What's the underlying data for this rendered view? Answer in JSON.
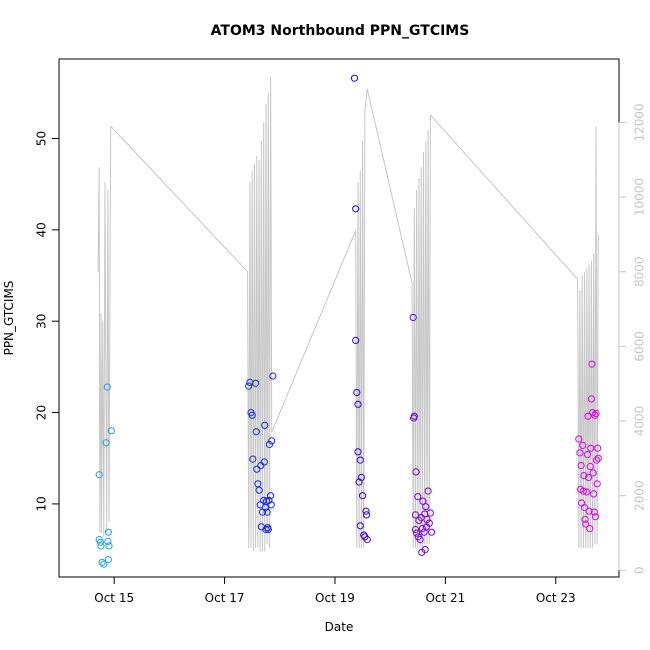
{
  "chart_data": {
    "type": "scatter",
    "title": "ATOM3 Northbound PPN_GTCIMS",
    "xlabel": "Date",
    "ylabel": "PPN_GTCIMS",
    "x_ticks": [
      "Oct 15",
      "Oct 17",
      "Oct 19",
      "Oct 21",
      "Oct 23"
    ],
    "y_ticks": [
      10,
      20,
      30,
      40,
      50
    ],
    "y2_ticks": [
      0,
      2000,
      4000,
      6000,
      8000,
      10000,
      12000
    ],
    "xlim": [
      "Oct 14 00:00",
      "Oct 24 03:30"
    ],
    "ylim": [
      2,
      58.7
    ],
    "y2lim": [
      -180,
      13700
    ],
    "grid": false,
    "colors": {
      "line": "#c6c6c6",
      "right_axis": "#c6c6c6",
      "points_gradient": [
        "#29a3f0",
        "#0a3cf0",
        "#2a00d6",
        "#ad00e6",
        "#e000f0"
      ]
    },
    "series": [
      {
        "type": "scatter",
        "axis": "left",
        "points": [
          [
            "Oct 14 17:30",
            13.2
          ],
          [
            "Oct 14 17:30",
            6.1
          ],
          [
            "Oct 14 18:00",
            5.8
          ],
          [
            "Oct 14 18:15",
            5.4
          ],
          [
            "Oct 14 18:45",
            3.6
          ],
          [
            "Oct 14 19:30",
            3.4
          ],
          [
            "Oct 14 20:30",
            16.7
          ],
          [
            "Oct 14 21:00",
            22.8
          ],
          [
            "Oct 14 21:15",
            5.9
          ],
          [
            "Oct 14 21:30",
            3.9
          ],
          [
            "Oct 14 21:30",
            6.9
          ],
          [
            "Oct 14 21:45",
            5.4
          ],
          [
            "Oct 14 22:45",
            18.0
          ],
          [
            "Oct 17 10:30",
            22.9
          ],
          [
            "Oct 17 11:00",
            23.3
          ],
          [
            "Oct 17 11:30",
            20.0
          ],
          [
            "Oct 17 12:00",
            19.7
          ],
          [
            "Oct 17 12:15",
            14.9
          ],
          [
            "Oct 17 13:30",
            23.2
          ],
          [
            "Oct 17 13:45",
            17.9
          ],
          [
            "Oct 17 14:00",
            13.8
          ],
          [
            "Oct 17 14:30",
            12.2
          ],
          [
            "Oct 17 15:00",
            11.5
          ],
          [
            "Oct 17 15:30",
            9.9
          ],
          [
            "Oct 17 15:45",
            14.2
          ],
          [
            "Oct 17 16:00",
            7.5
          ],
          [
            "Oct 17 16:30",
            9.1
          ],
          [
            "Oct 17 17:00",
            10.4
          ],
          [
            "Oct 17 17:15",
            14.6
          ],
          [
            "Oct 17 17:30",
            18.6
          ],
          [
            "Oct 17 17:45",
            9.6
          ],
          [
            "Oct 17 18:00",
            7.2
          ],
          [
            "Oct 17 18:15",
            10.3
          ],
          [
            "Oct 17 18:30",
            9.1
          ],
          [
            "Oct 17 18:45",
            7.4
          ],
          [
            "Oct 17 19:00",
            7.2
          ],
          [
            "Oct 17 19:15",
            10.4
          ],
          [
            "Oct 17 19:30",
            16.5
          ],
          [
            "Oct 17 20:00",
            10.9
          ],
          [
            "Oct 17 20:15",
            9.9
          ],
          [
            "Oct 17 20:30",
            16.9
          ],
          [
            "Oct 17 21:00",
            24.0
          ],
          [
            "Oct 19 08:30",
            56.6
          ],
          [
            "Oct 19 09:00",
            42.3
          ],
          [
            "Oct 19 09:00",
            27.9
          ],
          [
            "Oct 19 09:30",
            22.2
          ],
          [
            "Oct 19 10:00",
            20.9
          ],
          [
            "Oct 19 10:00",
            15.7
          ],
          [
            "Oct 19 10:30",
            12.4
          ],
          [
            "Oct 19 11:00",
            14.8
          ],
          [
            "Oct 19 11:00",
            7.6
          ],
          [
            "Oct 19 11:30",
            12.9
          ],
          [
            "Oct 19 12:00",
            10.9
          ],
          [
            "Oct 19 12:30",
            6.6
          ],
          [
            "Oct 19 13:00",
            6.4
          ],
          [
            "Oct 19 13:30",
            9.2
          ],
          [
            "Oct 19 13:45",
            8.8
          ],
          [
            "Oct 19 14:00",
            6.1
          ],
          [
            "Oct 20 10:00",
            30.4
          ],
          [
            "Oct 20 10:15",
            19.4
          ],
          [
            "Oct 20 10:30",
            19.6
          ],
          [
            "Oct 20 11:15",
            13.5
          ],
          [
            "Oct 20 11:00",
            8.8
          ],
          [
            "Oct 20 11:00",
            7.2
          ],
          [
            "Oct 20 11:30",
            6.8
          ],
          [
            "Oct 20 12:00",
            10.8
          ],
          [
            "Oct 20 12:15",
            6.4
          ],
          [
            "Oct 20 12:30",
            8.2
          ],
          [
            "Oct 20 13:00",
            6.1
          ],
          [
            "Oct 20 13:30",
            8.5
          ],
          [
            "Oct 20 13:45",
            4.7
          ],
          [
            "Oct 20 14:00",
            7.3
          ],
          [
            "Oct 20 14:15",
            10.3
          ],
          [
            "Oct 20 14:45",
            6.9
          ],
          [
            "Oct 20 15:00",
            8.9
          ],
          [
            "Oct 20 15:15",
            5.0
          ],
          [
            "Oct 20 15:30",
            9.7
          ],
          [
            "Oct 20 15:45",
            7.5
          ],
          [
            "Oct 20 16:00",
            8.3
          ],
          [
            "Oct 20 16:30",
            11.4
          ],
          [
            "Oct 20 17:00",
            7.9
          ],
          [
            "Oct 20 17:30",
            9.0
          ],
          [
            "Oct 20 18:00",
            6.9
          ],
          [
            "Oct 23 10:00",
            17.1
          ],
          [
            "Oct 23 10:30",
            15.6
          ],
          [
            "Oct 23 10:45",
            11.6
          ],
          [
            "Oct 23 11:00",
            14.2
          ],
          [
            "Oct 23 11:15",
            10.1
          ],
          [
            "Oct 23 11:45",
            16.4
          ],
          [
            "Oct 23 12:00",
            11.4
          ],
          [
            "Oct 23 12:15",
            13.1
          ],
          [
            "Oct 23 12:30",
            9.6
          ],
          [
            "Oct 23 12:45",
            8.3
          ],
          [
            "Oct 23 13:00",
            7.8
          ],
          [
            "Oct 23 13:30",
            11.3
          ],
          [
            "Oct 23 13:45",
            15.4
          ],
          [
            "Oct 23 14:00",
            19.6
          ],
          [
            "Oct 23 14:15",
            12.9
          ],
          [
            "Oct 23 14:30",
            9.2
          ],
          [
            "Oct 23 14:45",
            7.3
          ],
          [
            "Oct 23 15:00",
            14.1
          ],
          [
            "Oct 23 15:15",
            16.1
          ],
          [
            "Oct 23 15:30",
            21.5
          ],
          [
            "Oct 23 15:45",
            25.3
          ],
          [
            "Oct 23 16:00",
            20.0
          ],
          [
            "Oct 23 16:15",
            13.4
          ],
          [
            "Oct 23 16:30",
            11.1
          ],
          [
            "Oct 23 16:45",
            9.1
          ],
          [
            "Oct 23 17:00",
            19.7
          ],
          [
            "Oct 23 17:15",
            8.6
          ],
          [
            "Oct 23 17:30",
            19.9
          ],
          [
            "Oct 23 17:45",
            14.8
          ],
          [
            "Oct 23 18:00",
            12.2
          ],
          [
            "Oct 23 18:15",
            16.1
          ],
          [
            "Oct 23 18:30",
            15.0
          ]
        ]
      },
      {
        "type": "line",
        "axis": "right",
        "points": [
          [
            "Oct 14 17:00",
            8000
          ],
          [
            "Oct 14 17:30",
            10800
          ],
          [
            "Oct 14 17:45",
            1000
          ],
          [
            "Oct 14 18:15",
            6900
          ],
          [
            "Oct 14 18:30",
            1000
          ],
          [
            "Oct 14 19:00",
            6700
          ],
          [
            "Oct 14 19:30",
            900
          ],
          [
            "Oct 14 20:00",
            10400
          ],
          [
            "Oct 14 20:45",
            1000
          ],
          [
            "Oct 14 21:15",
            10200
          ],
          [
            "Oct 14 21:45",
            1300
          ],
          [
            "Oct 14 22:30",
            11900
          ],
          [
            "Oct 17 10:00",
            8000
          ],
          [
            "Oct 17 10:30",
            600
          ],
          [
            "Oct 17 11:00",
            10400
          ],
          [
            "Oct 17 11:30",
            600
          ],
          [
            "Oct 17 12:00",
            10700
          ],
          [
            "Oct 17 12:30",
            500
          ],
          [
            "Oct 17 13:00",
            10900
          ],
          [
            "Oct 17 13:30",
            600
          ],
          [
            "Oct 17 14:00",
            11100
          ],
          [
            "Oct 17 14:30",
            600
          ],
          [
            "Oct 17 15:00",
            11000
          ],
          [
            "Oct 17 15:30",
            500
          ],
          [
            "Oct 17 16:00",
            11500
          ],
          [
            "Oct 17 16:30",
            500
          ],
          [
            "Oct 17 17:00",
            12000
          ],
          [
            "Oct 17 17:30",
            500
          ],
          [
            "Oct 17 18:00",
            12500
          ],
          [
            "Oct 17 18:30",
            700
          ],
          [
            "Oct 17 19:00",
            12800
          ],
          [
            "Oct 17 19:30",
            600
          ],
          [
            "Oct 17 20:00",
            13200
          ],
          [
            "Oct 17 20:30",
            3700
          ],
          [
            "Oct 19 09:00",
            9100
          ],
          [
            "Oct 19 09:30",
            600
          ],
          [
            "Oct 19 10:00",
            10400
          ],
          [
            "Oct 19 10:30",
            600
          ],
          [
            "Oct 19 11:00",
            10700
          ],
          [
            "Oct 19 11:30",
            600
          ],
          [
            "Oct 19 12:00",
            11500
          ],
          [
            "Oct 19 12:30",
            600
          ],
          [
            "Oct 19 13:00",
            12300
          ],
          [
            "Oct 19 14:00",
            12900
          ],
          [
            "Oct 20 09:30",
            7700
          ],
          [
            "Oct 20 10:00",
            600
          ],
          [
            "Oct 20 10:30",
            9700
          ],
          [
            "Oct 20 11:00",
            600
          ],
          [
            "Oct 20 11:30",
            10200
          ],
          [
            "Oct 20 12:00",
            600
          ],
          [
            "Oct 20 12:30",
            10500
          ],
          [
            "Oct 20 13:00",
            600
          ],
          [
            "Oct 20 13:30",
            10800
          ],
          [
            "Oct 20 14:00",
            600
          ],
          [
            "Oct 20 14:30",
            11200
          ],
          [
            "Oct 20 15:00",
            700
          ],
          [
            "Oct 20 15:30",
            11500
          ],
          [
            "Oct 20 16:00",
            700
          ],
          [
            "Oct 20 16:30",
            11800
          ],
          [
            "Oct 20 17:00",
            700
          ],
          [
            "Oct 20 17:30",
            12200
          ],
          [
            "Oct 23 09:30",
            7800
          ],
          [
            "Oct 23 10:00",
            600
          ],
          [
            "Oct 23 10:30",
            7500
          ],
          [
            "Oct 23 11:00",
            600
          ],
          [
            "Oct 23 11:30",
            7900
          ],
          [
            "Oct 23 12:00",
            600
          ],
          [
            "Oct 23 12:30",
            8000
          ],
          [
            "Oct 23 13:00",
            600
          ],
          [
            "Oct 23 13:30",
            8100
          ],
          [
            "Oct 23 14:00",
            600
          ],
          [
            "Oct 23 14:30",
            8200
          ],
          [
            "Oct 23 15:00",
            600
          ],
          [
            "Oct 23 15:30",
            8300
          ],
          [
            "Oct 23 16:00",
            600
          ],
          [
            "Oct 23 16:30",
            8500
          ],
          [
            "Oct 23 17:00",
            700
          ],
          [
            "Oct 23 17:30",
            11900
          ],
          [
            "Oct 23 18:00",
            700
          ],
          [
            "Oct 23 18:30",
            9000
          ]
        ]
      }
    ]
  }
}
